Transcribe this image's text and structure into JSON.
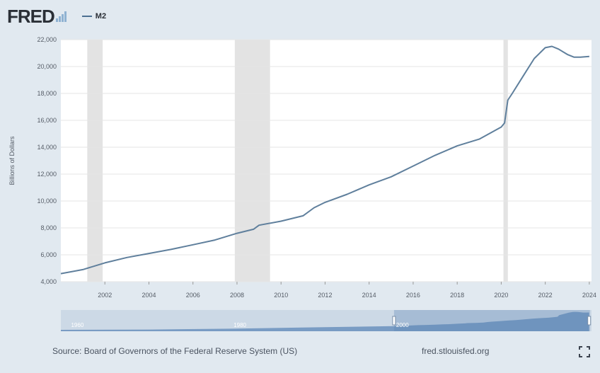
{
  "header": {
    "logo_text": "FRED",
    "legend_label": "M2"
  },
  "footer": {
    "source": "Source: Board of Governors of the Federal Reserve System (US)",
    "url": "fred.stlouisfed.org"
  },
  "colors": {
    "line": "#5f7f9c",
    "recession": "#e3e3e3",
    "plot_bg": "#ffffff",
    "page_bg": "#e1e9f0",
    "nav_fill": "#6a91bd"
  },
  "icons": {
    "fullscreen": "fullscreen-icon"
  },
  "chart_data": {
    "type": "line",
    "title": "",
    "xlabel": "",
    "ylabel": "Billions of Dollars",
    "xlim": [
      2000.0,
      2024.1
    ],
    "ylim": [
      4000,
      22000
    ],
    "x_ticks": [
      {
        "value": 2002,
        "label": "2002"
      },
      {
        "value": 2004,
        "label": "2004"
      },
      {
        "value": 2006,
        "label": "2006"
      },
      {
        "value": 2008,
        "label": "2008"
      },
      {
        "value": 2010,
        "label": "2010"
      },
      {
        "value": 2012,
        "label": "2012"
      },
      {
        "value": 2014,
        "label": "2014"
      },
      {
        "value": 2016,
        "label": "2016"
      },
      {
        "value": 2018,
        "label": "2018"
      },
      {
        "value": 2020,
        "label": "2020"
      },
      {
        "value": 2022,
        "label": "2022"
      },
      {
        "value": 2024,
        "label": "2024"
      }
    ],
    "y_ticks": [
      {
        "value": 4000,
        "label": "4,000"
      },
      {
        "value": 6000,
        "label": "6,000"
      },
      {
        "value": 8000,
        "label": "8,000"
      },
      {
        "value": 10000,
        "label": "10,000"
      },
      {
        "value": 12000,
        "label": "12,000"
      },
      {
        "value": 14000,
        "label": "14,000"
      },
      {
        "value": 16000,
        "label": "16,000"
      },
      {
        "value": 18000,
        "label": "18,000"
      },
      {
        "value": 20000,
        "label": "20,000"
      },
      {
        "value": 22000,
        "label": "22,000"
      }
    ],
    "grid": "horizontal",
    "recessions": [
      [
        2001.2,
        2001.9
      ],
      [
        2007.9,
        2009.5
      ],
      [
        2020.1,
        2020.3
      ]
    ],
    "series": [
      {
        "name": "M2",
        "x": [
          2000.0,
          2001.0,
          2002.0,
          2003.0,
          2004.0,
          2005.0,
          2006.0,
          2007.0,
          2008.0,
          2008.75,
          2009.0,
          2010.0,
          2011.0,
          2011.5,
          2012.0,
          2013.0,
          2014.0,
          2015.0,
          2016.0,
          2017.0,
          2018.0,
          2019.0,
          2020.0,
          2020.15,
          2020.3,
          2020.5,
          2021.0,
          2021.5,
          2022.0,
          2022.3,
          2022.6,
          2023.0,
          2023.3,
          2023.6,
          2024.0
        ],
        "y": [
          4600,
          4900,
          5400,
          5800,
          6100,
          6400,
          6750,
          7100,
          7600,
          7900,
          8200,
          8500,
          8900,
          9500,
          9900,
          10500,
          11200,
          11800,
          12600,
          13400,
          14100,
          14600,
          15500,
          15800,
          17500,
          18000,
          19300,
          20600,
          21400,
          21500,
          21300,
          20900,
          20700,
          20700,
          20750
        ]
      }
    ],
    "navigator": {
      "labels": [
        {
          "value": 1960,
          "label": "1960"
        },
        {
          "value": 1980,
          "label": "1980"
        },
        {
          "value": 2000,
          "label": "2000"
        }
      ],
      "range": [
        1959.0,
        2024.3
      ],
      "selected": [
        2000.0,
        2024.1
      ]
    }
  }
}
